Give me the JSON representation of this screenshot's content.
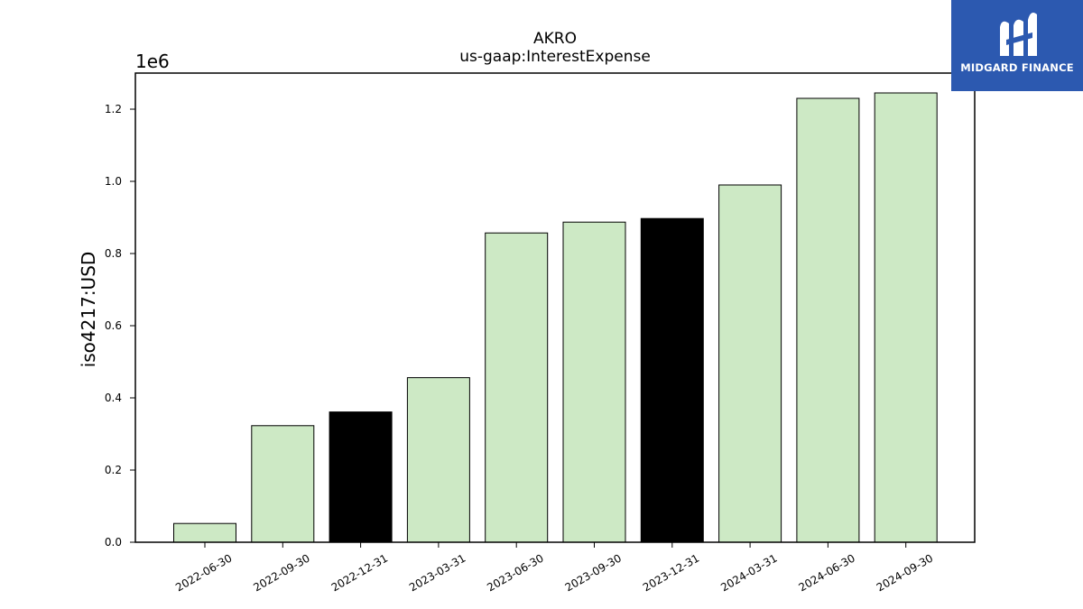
{
  "logo": {
    "text": "MIDGARD FINANCE",
    "background": "#2c59b0"
  },
  "chart_data": {
    "type": "bar",
    "title": "AKRO",
    "subtitle": "us-gaap:InterestExpense",
    "xlabel": "",
    "ylabel": "iso4217:USD",
    "y_scale_exponent_label": "1e6",
    "ylim": [
      0,
      1.3
    ],
    "yticks": [
      "0.0",
      "0.2",
      "0.4",
      "0.6",
      "0.8",
      "1.0",
      "1.2"
    ],
    "categories": [
      "2022-06-30",
      "2022-09-30",
      "2022-12-31",
      "2023-03-31",
      "2023-06-30",
      "2023-09-30",
      "2023-12-31",
      "2024-03-31",
      "2024-06-30",
      "2024-09-30"
    ],
    "values": [
      0.052,
      0.323,
      0.361,
      0.456,
      0.857,
      0.887,
      0.897,
      0.99,
      1.23,
      1.245
    ],
    "bar_colors": [
      "#cde9c5",
      "#cde9c5",
      "#000000",
      "#cde9c5",
      "#cde9c5",
      "#cde9c5",
      "#000000",
      "#cde9c5",
      "#cde9c5",
      "#cde9c5"
    ],
    "bar_edge_color": "#000000",
    "grid": false
  }
}
